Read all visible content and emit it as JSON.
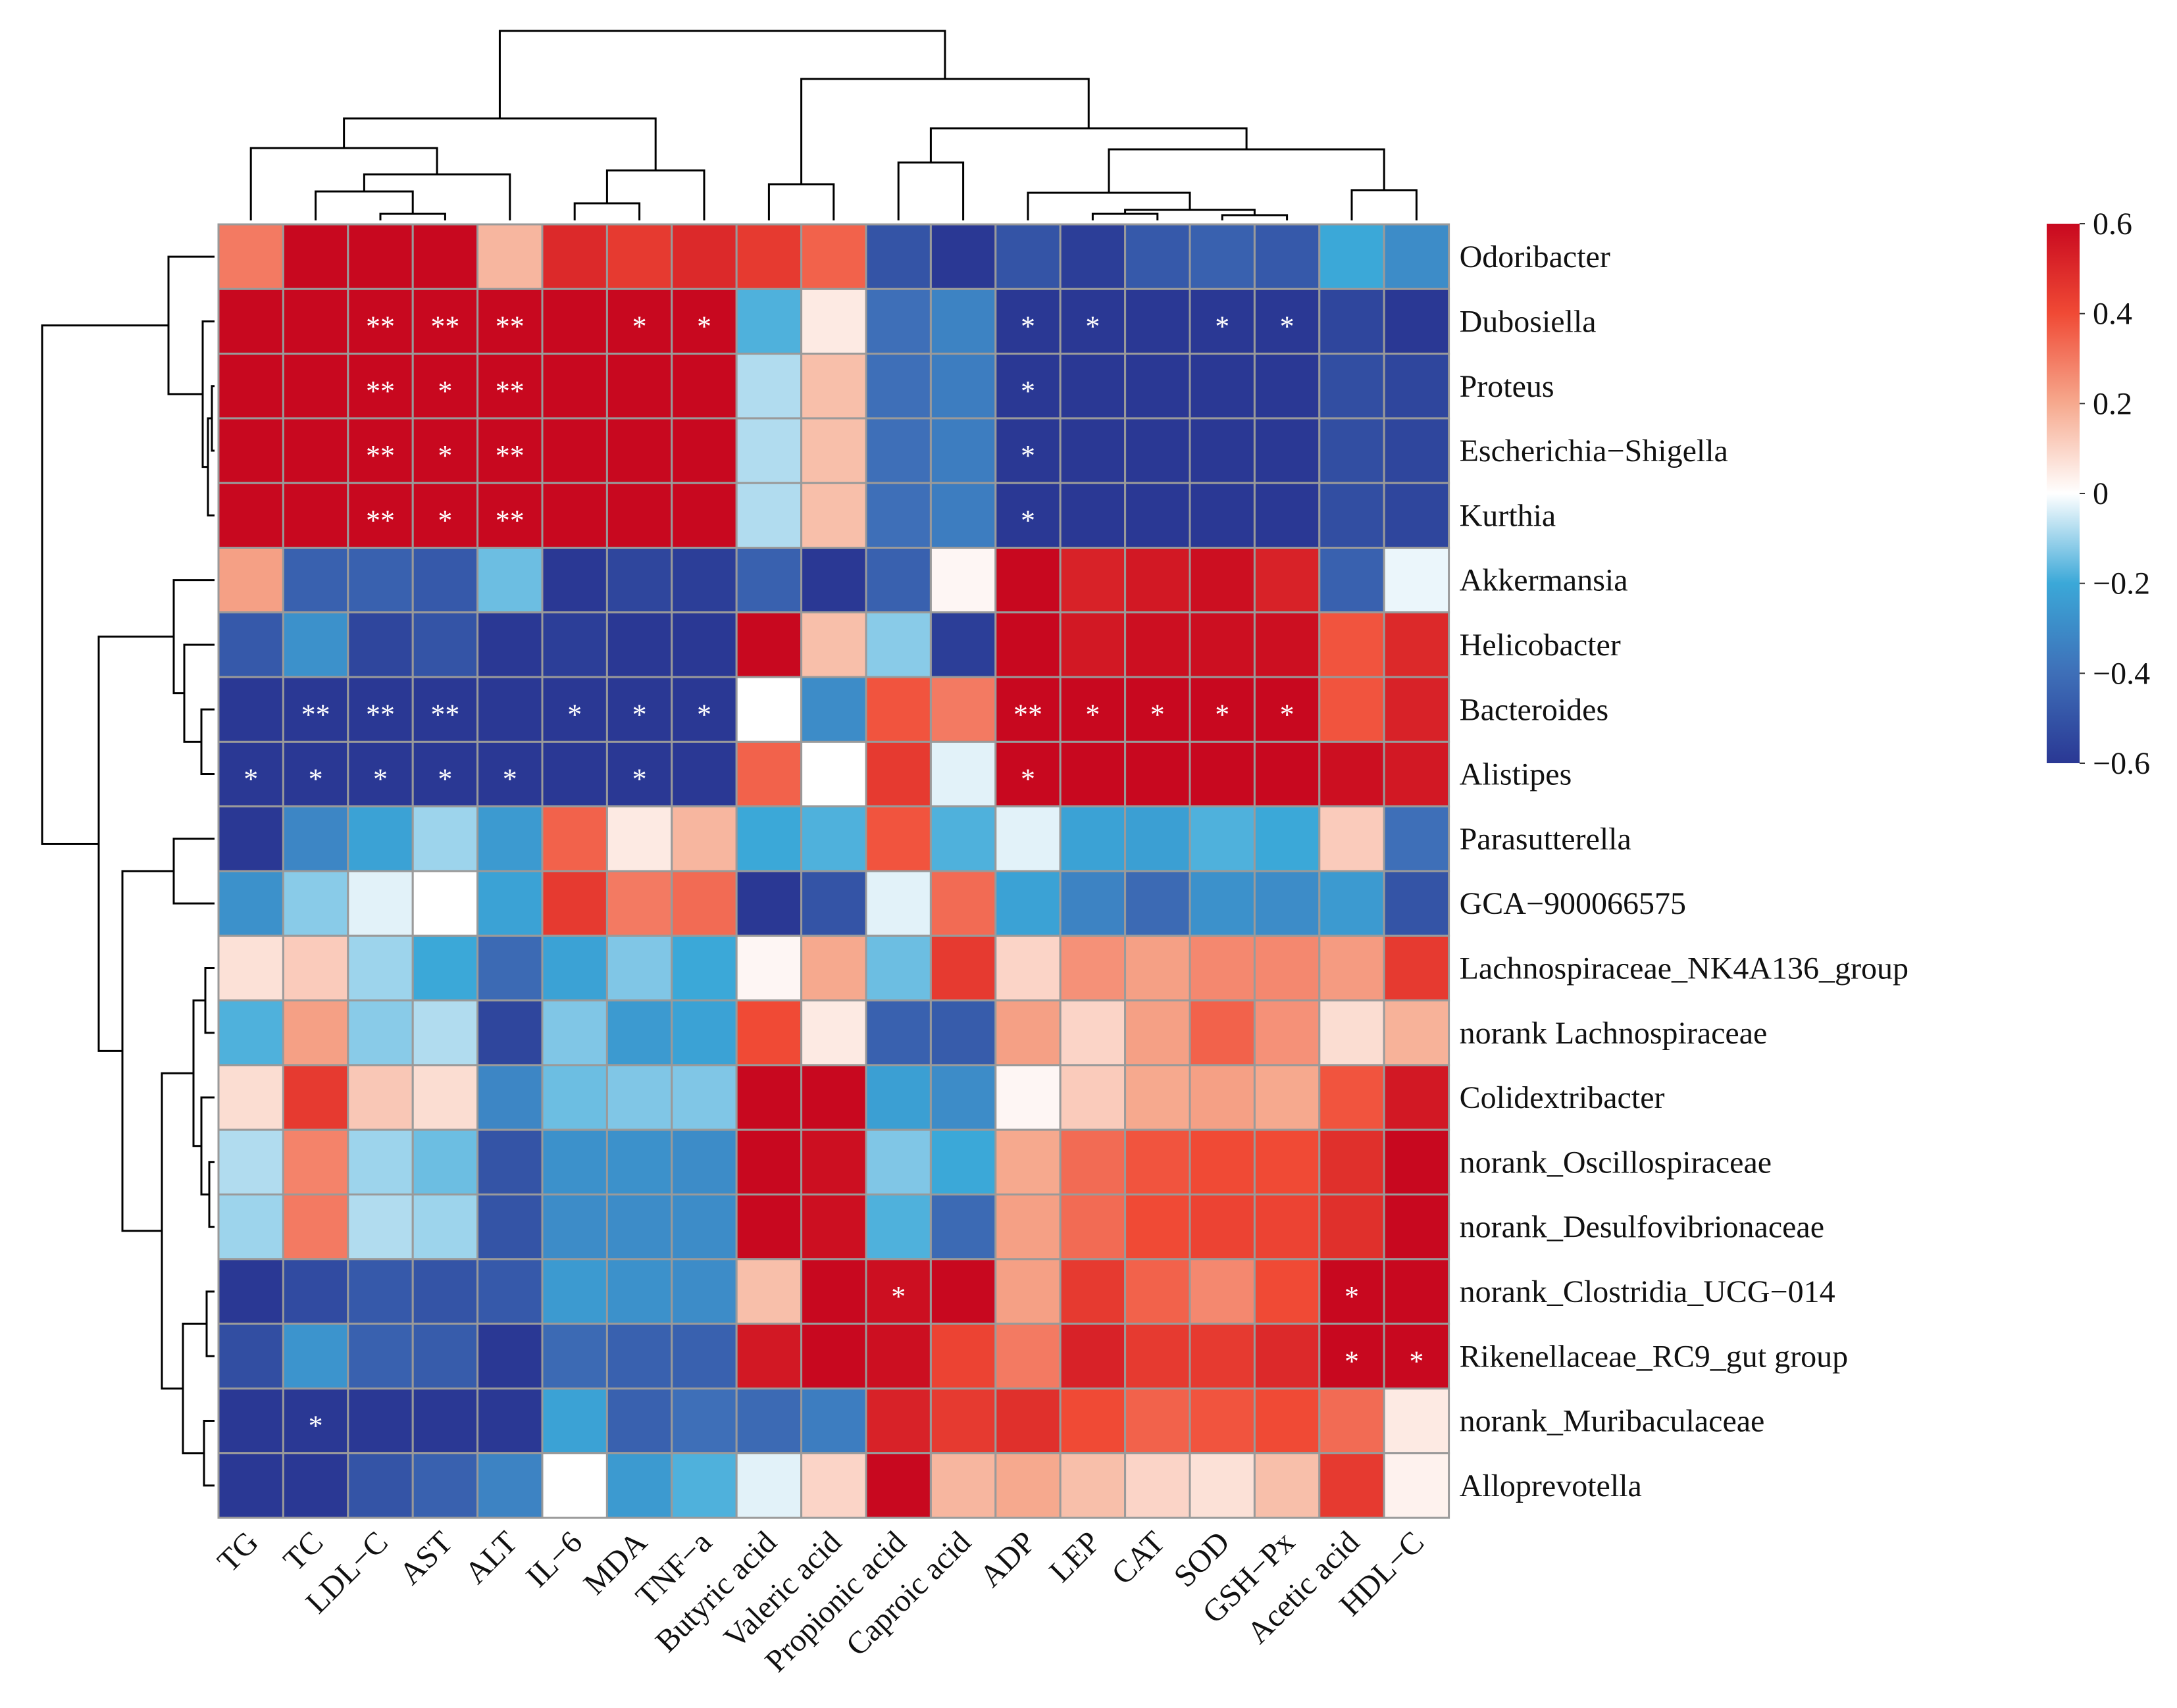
{
  "chart_data": {
    "type": "heatmap",
    "title": "",
    "columns": [
      "TG",
      "TC",
      "LDL−C",
      "AST",
      "ALT",
      "IL−6",
      "MDA",
      "TNF−a",
      "Butyric acid",
      "Valeric acid",
      "Propionic acid",
      "Caproic acid",
      "ADP",
      "LEP",
      "CAT",
      "SOD",
      "GSH−Px",
      "Acetic acid",
      "HDL−C"
    ],
    "rows": [
      "Odoribacter",
      "Dubosiella",
      "Proteus",
      "Escherichia−Shigella",
      "Kurthia",
      "Akkermansia",
      "Helicobacter",
      "Bacteroides",
      "Alistipes",
      "Parasutterella",
      "GCA−900066575",
      "Lachnospiraceae_NK4A136_group",
      "norank Lachnospiraceae",
      "Colidextribacter",
      "norank_Oscillospiraceae",
      "norank_Desulfovibrionaceae",
      "norank_Clostridia_UCG−014",
      "Rikenellaceae_RC9_gut group",
      "norank_Muribaculaceae",
      "Alloprevotella"
    ],
    "values": [
      [
        0.3,
        0.6,
        0.6,
        0.6,
        0.17,
        0.5,
        0.45,
        0.5,
        0.45,
        0.35,
        -0.5,
        -0.6,
        -0.5,
        -0.58,
        -0.48,
        -0.45,
        -0.48,
        -0.2,
        -0.3
      ],
      [
        0.6,
        0.6,
        0.6,
        0.6,
        0.6,
        0.6,
        0.6,
        0.6,
        -0.18,
        0.05,
        -0.4,
        -0.33,
        -0.6,
        -0.6,
        -0.6,
        -0.6,
        -0.6,
        -0.55,
        -0.6
      ],
      [
        0.6,
        0.6,
        0.6,
        0.6,
        0.6,
        0.6,
        0.6,
        0.6,
        -0.08,
        0.15,
        -0.4,
        -0.35,
        -0.6,
        -0.6,
        -0.6,
        -0.6,
        -0.6,
        -0.52,
        -0.55
      ],
      [
        0.6,
        0.6,
        0.6,
        0.6,
        0.6,
        0.6,
        0.6,
        0.6,
        -0.08,
        0.15,
        -0.4,
        -0.35,
        -0.6,
        -0.6,
        -0.6,
        -0.6,
        -0.6,
        -0.52,
        -0.55
      ],
      [
        0.6,
        0.6,
        0.6,
        0.6,
        0.6,
        0.6,
        0.6,
        0.6,
        -0.08,
        0.15,
        -0.4,
        -0.35,
        -0.6,
        -0.6,
        -0.6,
        -0.6,
        -0.6,
        -0.52,
        -0.55
      ],
      [
        0.22,
        -0.45,
        -0.45,
        -0.48,
        -0.15,
        -0.6,
        -0.55,
        -0.58,
        -0.45,
        -0.6,
        -0.45,
        0.02,
        0.6,
        0.52,
        0.55,
        0.58,
        0.52,
        -0.45,
        -0.02
      ],
      [
        -0.48,
        -0.28,
        -0.55,
        -0.5,
        -0.6,
        -0.58,
        -0.6,
        -0.6,
        0.6,
        0.15,
        -0.12,
        -0.58,
        0.6,
        0.55,
        0.58,
        0.58,
        0.58,
        0.38,
        0.5
      ],
      [
        -0.6,
        -0.6,
        -0.6,
        -0.6,
        -0.6,
        -0.6,
        -0.6,
        -0.6,
        0.0,
        -0.3,
        0.38,
        0.3,
        0.6,
        0.6,
        0.6,
        0.6,
        0.6,
        0.38,
        0.52
      ],
      [
        -0.6,
        -0.6,
        -0.6,
        -0.6,
        -0.6,
        -0.6,
        -0.6,
        -0.6,
        0.35,
        0.0,
        0.45,
        -0.03,
        0.6,
        0.6,
        0.6,
        0.6,
        0.6,
        0.58,
        0.55
      ],
      [
        -0.6,
        -0.32,
        -0.22,
        -0.1,
        -0.25,
        0.35,
        0.05,
        0.17,
        -0.2,
        -0.18,
        0.38,
        -0.18,
        -0.03,
        -0.22,
        -0.23,
        -0.18,
        -0.2,
        0.12,
        -0.4
      ],
      [
        -0.28,
        -0.12,
        -0.03,
        0.0,
        -0.22,
        0.45,
        0.3,
        0.33,
        -0.6,
        -0.5,
        -0.03,
        0.33,
        -0.22,
        -0.33,
        -0.42,
        -0.28,
        -0.3,
        -0.25,
        -0.5
      ],
      [
        0.07,
        0.12,
        -0.1,
        -0.2,
        -0.42,
        -0.22,
        -0.13,
        -0.2,
        0.02,
        0.2,
        -0.15,
        0.45,
        0.1,
        0.25,
        0.22,
        0.27,
        0.27,
        0.23,
        0.45
      ],
      [
        -0.18,
        0.22,
        -0.12,
        -0.08,
        -0.55,
        -0.13,
        -0.25,
        -0.22,
        0.4,
        0.05,
        -0.45,
        -0.47,
        0.22,
        0.1,
        0.22,
        0.35,
        0.25,
        0.08,
        0.18
      ],
      [
        0.08,
        0.45,
        0.13,
        0.08,
        -0.32,
        -0.15,
        -0.13,
        -0.13,
        0.6,
        0.6,
        -0.23,
        -0.3,
        0.02,
        0.12,
        0.2,
        0.22,
        0.2,
        0.38,
        0.55
      ],
      [
        -0.08,
        0.28,
        -0.1,
        -0.15,
        -0.5,
        -0.28,
        -0.28,
        -0.3,
        0.6,
        0.58,
        -0.13,
        -0.2,
        0.2,
        0.33,
        0.38,
        0.4,
        0.4,
        0.48,
        0.6
      ],
      [
        -0.1,
        0.3,
        -0.08,
        -0.1,
        -0.5,
        -0.3,
        -0.3,
        -0.3,
        0.6,
        0.58,
        -0.18,
        -0.42,
        0.22,
        0.33,
        0.4,
        0.42,
        0.42,
        0.48,
        0.6
      ],
      [
        -0.6,
        -0.53,
        -0.48,
        -0.5,
        -0.48,
        -0.25,
        -0.28,
        -0.3,
        0.15,
        0.6,
        0.58,
        0.6,
        0.22,
        0.45,
        0.35,
        0.27,
        0.4,
        0.6,
        0.6
      ],
      [
        -0.52,
        -0.27,
        -0.45,
        -0.47,
        -0.6,
        -0.42,
        -0.45,
        -0.45,
        0.55,
        0.6,
        0.58,
        0.42,
        0.3,
        0.52,
        0.45,
        0.45,
        0.5,
        0.6,
        0.6
      ],
      [
        -0.6,
        -0.6,
        -0.6,
        -0.6,
        -0.6,
        -0.22,
        -0.45,
        -0.4,
        -0.42,
        -0.35,
        0.52,
        0.45,
        0.48,
        0.4,
        0.35,
        0.38,
        0.4,
        0.33,
        0.05
      ],
      [
        -0.6,
        -0.6,
        -0.5,
        -0.45,
        -0.33,
        0.0,
        -0.25,
        -0.18,
        -0.03,
        0.1,
        0.6,
        0.17,
        0.2,
        0.15,
        0.1,
        0.07,
        0.15,
        0.45,
        0.03
      ]
    ],
    "significance": [
      [
        "",
        "",
        "",
        "",
        "",
        "",
        "",
        "",
        "",
        "",
        "",
        "",
        "",
        "",
        "",
        "",
        "",
        "",
        ""
      ],
      [
        "",
        "",
        "**",
        "**",
        "**",
        "",
        "*",
        "*",
        "",
        "",
        "",
        "",
        "*",
        "*",
        "",
        "*",
        "*",
        "",
        ""
      ],
      [
        "",
        "",
        "**",
        "*",
        "**",
        "",
        "",
        "",
        "",
        "",
        "",
        "",
        "*",
        "",
        "",
        "",
        "",
        "",
        ""
      ],
      [
        "",
        "",
        "**",
        "*",
        "**",
        "",
        "",
        "",
        "",
        "",
        "",
        "",
        "*",
        "",
        "",
        "",
        "",
        "",
        ""
      ],
      [
        "",
        "",
        "**",
        "*",
        "**",
        "",
        "",
        "",
        "",
        "",
        "",
        "",
        "*",
        "",
        "",
        "",
        "",
        "",
        ""
      ],
      [
        "",
        "",
        "",
        "",
        "",
        "",
        "",
        "",
        "",
        "",
        "",
        "",
        "",
        "",
        "",
        "",
        "",
        "",
        ""
      ],
      [
        "",
        "",
        "",
        "",
        "",
        "",
        "",
        "",
        "",
        "",
        "",
        "",
        "",
        "",
        "",
        "",
        "",
        "",
        ""
      ],
      [
        "",
        "**",
        "**",
        "**",
        "",
        "*",
        "*",
        "*",
        "",
        "",
        "",
        "",
        "**",
        "*",
        "*",
        "*",
        "*",
        "",
        ""
      ],
      [
        "*",
        "*",
        "*",
        "*",
        "*",
        "",
        "*",
        "",
        "",
        "",
        "",
        "",
        "*",
        "",
        "",
        "",
        "",
        "",
        ""
      ],
      [
        "",
        "",
        "",
        "",
        "",
        "",
        "",
        "",
        "",
        "",
        "",
        "",
        "",
        "",
        "",
        "",
        "",
        "",
        ""
      ],
      [
        "",
        "",
        "",
        "",
        "",
        "",
        "",
        "",
        "",
        "",
        "",
        "",
        "",
        "",
        "",
        "",
        "",
        "",
        ""
      ],
      [
        "",
        "",
        "",
        "",
        "",
        "",
        "",
        "",
        "",
        "",
        "",
        "",
        "",
        "",
        "",
        "",
        "",
        "",
        ""
      ],
      [
        "",
        "",
        "",
        "",
        "",
        "",
        "",
        "",
        "",
        "",
        "",
        "",
        "",
        "",
        "",
        "",
        "",
        "",
        ""
      ],
      [
        "",
        "",
        "",
        "",
        "",
        "",
        "",
        "",
        "",
        "",
        "",
        "",
        "",
        "",
        "",
        "",
        "",
        "",
        ""
      ],
      [
        "",
        "",
        "",
        "",
        "",
        "",
        "",
        "",
        "",
        "",
        "",
        "",
        "",
        "",
        "",
        "",
        "",
        "",
        ""
      ],
      [
        "",
        "",
        "",
        "",
        "",
        "",
        "",
        "",
        "",
        "",
        "",
        "",
        "",
        "",
        "",
        "",
        "",
        "",
        ""
      ],
      [
        "",
        "",
        "",
        "",
        "",
        "",
        "",
        "",
        "",
        "",
        "*",
        "",
        "",
        "",
        "",
        "",
        "",
        "*",
        ""
      ],
      [
        "",
        "",
        "",
        "",
        "",
        "",
        "",
        "",
        "",
        "",
        "",
        "",
        "",
        "",
        "",
        "",
        "",
        "*",
        "*"
      ],
      [
        "",
        "*",
        "",
        "",
        "",
        "",
        "",
        "",
        "",
        "",
        "",
        "",
        "",
        "",
        "",
        "",
        "",
        "",
        ""
      ],
      [
        "",
        "",
        "",
        "",
        "",
        "",
        "",
        "",
        "",
        "",
        "",
        "",
        "",
        "",
        "",
        "",
        "",
        "",
        ""
      ]
    ],
    "color_scale": {
      "min": -0.6,
      "max": 0.6,
      "stops": [
        {
          "value": -0.6,
          "color": "#2a3894"
        },
        {
          "value": -0.4,
          "color": "#3e6fb8"
        },
        {
          "value": -0.2,
          "color": "#3ba8d8"
        },
        {
          "value": 0.0,
          "color": "#ffffff"
        },
        {
          "value": 0.2,
          "color": "#f6a98e"
        },
        {
          "value": 0.4,
          "color": "#f04a35"
        },
        {
          "value": 0.6,
          "color": "#c8081f"
        }
      ],
      "ticks": [
        "0.6",
        "0.4",
        "0.2",
        "0",
        "−0.2",
        "−0.4",
        "−0.6"
      ],
      "tick_values": [
        0.6,
        0.4,
        0.2,
        0.0,
        -0.2,
        -0.4,
        -0.6
      ]
    },
    "legend_position": "top-right",
    "column_dendrogram": "top",
    "row_dendrogram": "left"
  },
  "colors": {
    "grid_line": "#9a9a9a",
    "dendrogram": "#000000",
    "star": "#ffffff"
  }
}
